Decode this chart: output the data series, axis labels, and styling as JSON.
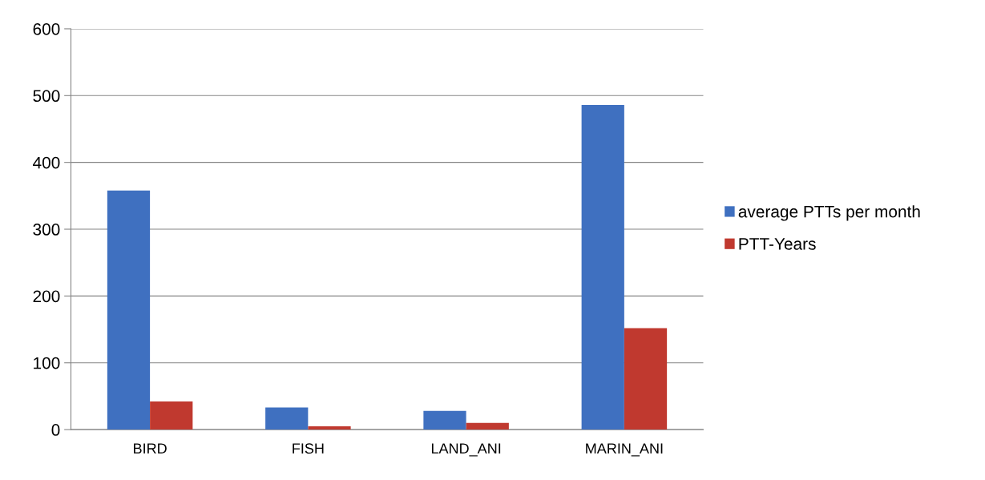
{
  "chart_data": {
    "type": "bar",
    "categories": [
      "BIRD",
      "FISH",
      "LAND_ANI",
      "MARIN_ANI"
    ],
    "series": [
      {
        "name": "average PTTs per month",
        "color": "#3f70c0",
        "values": [
          358,
          33,
          28,
          486
        ]
      },
      {
        "name": "PTT-Years",
        "color": "#c0392f",
        "values": [
          42,
          5,
          10,
          152
        ]
      }
    ],
    "ylim": [
      0,
      600
    ],
    "yticks": [
      0,
      100,
      200,
      300,
      400,
      500,
      600
    ],
    "grid": "y",
    "legend": "right"
  }
}
